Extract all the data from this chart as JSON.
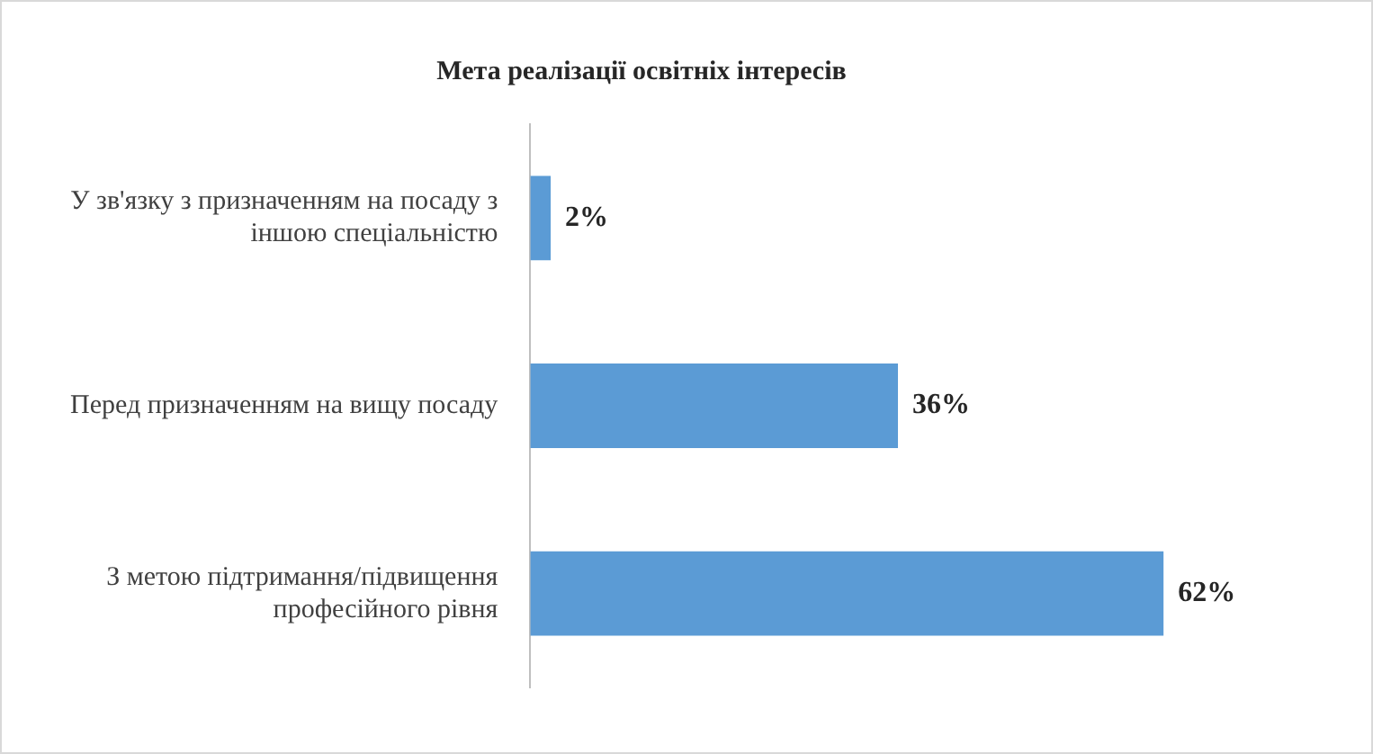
{
  "chart_data": {
    "type": "bar",
    "orientation": "horizontal",
    "title": "Мета реалізації освітніх інтересів",
    "categories": [
      "У зв'язку з призначенням на посаду з іншою спеціальністю",
      "Перед призначенням на вищу посаду",
      "З метою підтримання/підвищення професійного рівня"
    ],
    "values": [
      2,
      36,
      62
    ],
    "value_labels": [
      "2%",
      "36%",
      "62%"
    ],
    "color": "#5b9bd5",
    "legend": false
  }
}
